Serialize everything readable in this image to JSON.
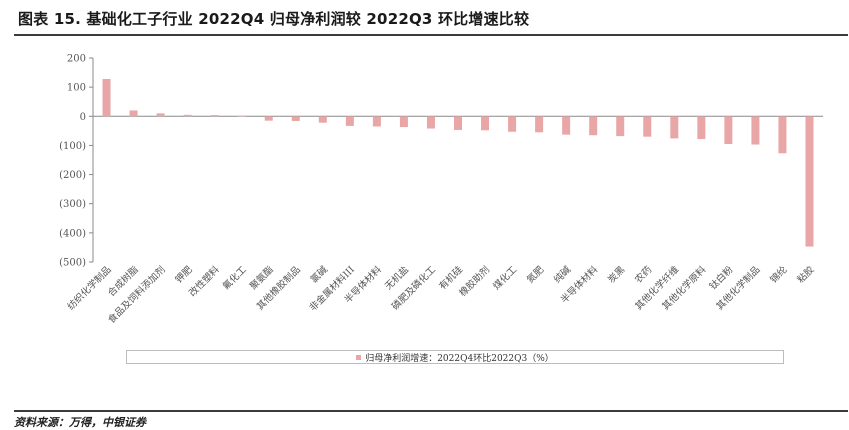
{
  "title": "图表 15. 基础化工子行业 2022Q4 归母净利润较 2022Q3 环比增速比较",
  "footer": "资料来源：万得，中银证券",
  "colors": {
    "bar": "#e8a6a6",
    "axis": "#8a8a8a",
    "text": "#555555"
  },
  "chart_data": {
    "type": "bar",
    "categories": [
      "纺织化学制品",
      "合成树脂",
      "食品及饲料添加剂",
      "钾肥",
      "改性塑料",
      "氟化工",
      "聚氨酯",
      "其他橡胶制品",
      "氯碱",
      "非金属材料III",
      "半导体材料",
      "无机盐",
      "磷肥及磷化工",
      "有机硅",
      "橡胶助剂",
      "煤化工",
      "氮肥",
      "纯碱",
      "半导体材料",
      "炭黑",
      "农药",
      "其他化学纤维",
      "其他化学原料",
      "钛白粉",
      "其他化学制品",
      "锦纶",
      "粘胶"
    ],
    "series": [
      {
        "name": "归母净利润增速：2022Q4环比2022Q3（%）",
        "values": [
          128,
          20,
          10,
          5,
          4,
          2,
          -15,
          -16,
          -22,
          -33,
          -35,
          -37,
          -42,
          -47,
          -48,
          -53,
          -55,
          -63,
          -65,
          -68,
          -70,
          -76,
          -78,
          -95,
          -97,
          -127,
          -447
        ]
      }
    ],
    "ylim": [
      -500,
      200
    ],
    "yticks": [
      "200",
      "100",
      "0",
      "(100)",
      "(200)",
      "(300)",
      "(400)",
      "(500)"
    ],
    "legend": "bottom"
  }
}
